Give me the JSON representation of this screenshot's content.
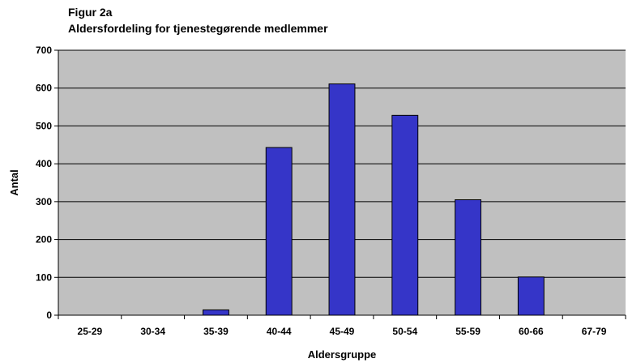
{
  "figure_label": "Figur 2a",
  "chart_data": {
    "type": "bar",
    "title": "Aldersfordeling for tjenestegørende medlemmer",
    "xlabel": "Aldersgruppe",
    "ylabel": "Antal",
    "categories": [
      "25-29",
      "30-34",
      "35-39",
      "40-44",
      "45-49",
      "50-54",
      "55-59",
      "60-66",
      "67-79"
    ],
    "values": [
      0,
      0,
      14,
      443,
      611,
      528,
      305,
      101,
      0
    ],
    "ylim": [
      0,
      700
    ],
    "yticks": [
      0,
      100,
      200,
      300,
      400,
      500,
      600,
      700
    ],
    "grid": true,
    "legend": "none",
    "bar_color": "#3535c8",
    "plot_background": "#c0c0c0"
  }
}
